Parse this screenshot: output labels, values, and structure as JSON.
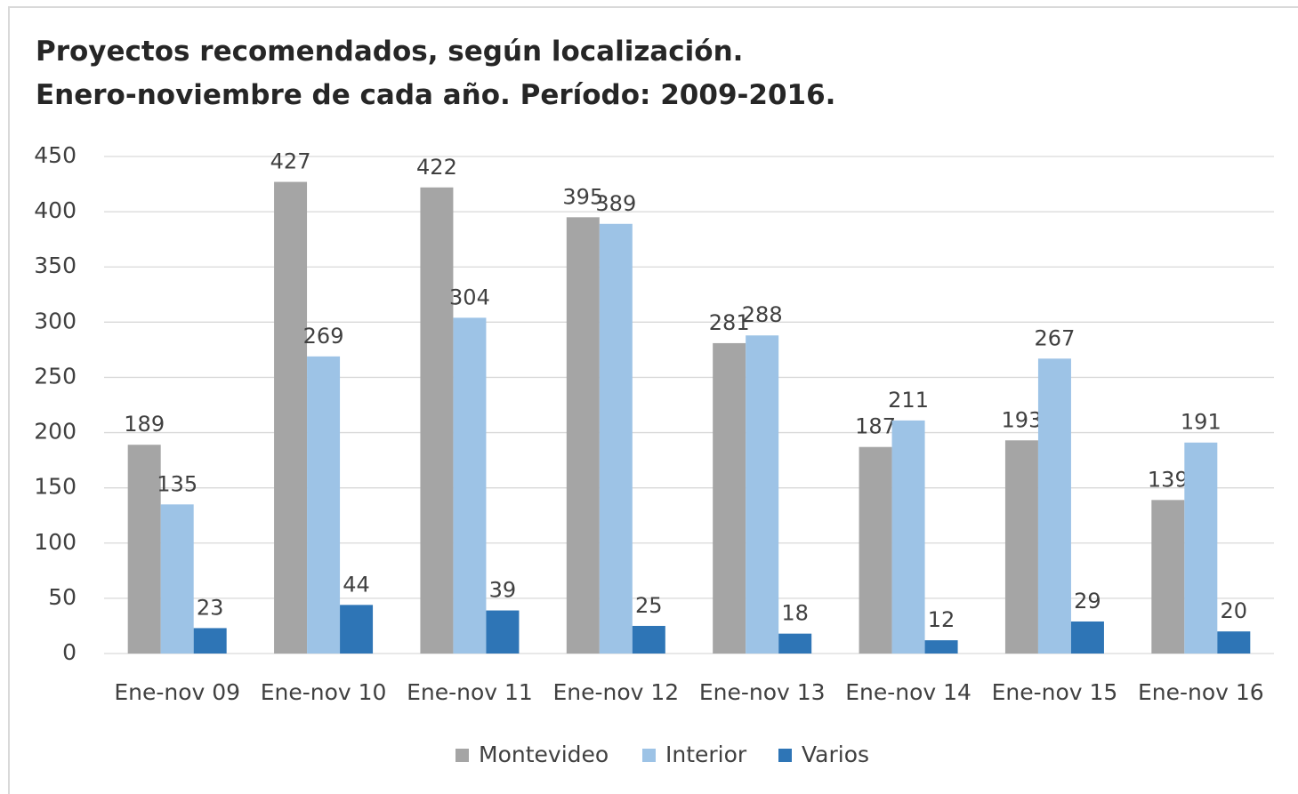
{
  "chart_data": {
    "type": "bar",
    "title": "Proyectos recomendados, según localización.",
    "subtitle": "Enero-noviembre de cada año. Período: 2009-2016.",
    "categories": [
      "Ene-nov 09",
      "Ene-nov 10",
      "Ene-nov 11",
      "Ene-nov 12",
      "Ene-nov 13",
      "Ene-nov 14",
      "Ene-nov 15",
      "Ene-nov 16"
    ],
    "series": [
      {
        "name": "Montevideo",
        "color": "#a5a5a5",
        "values": [
          189,
          427,
          422,
          395,
          281,
          187,
          193,
          139
        ]
      },
      {
        "name": "Interior",
        "color": "#9dc3e6",
        "values": [
          135,
          269,
          304,
          389,
          288,
          211,
          267,
          191
        ]
      },
      {
        "name": "Varios",
        "color": "#2e75b6",
        "values": [
          23,
          44,
          39,
          25,
          18,
          12,
          29,
          20
        ]
      }
    ],
    "ylim": [
      0,
      450
    ],
    "yticks": [
      0,
      50,
      100,
      150,
      200,
      250,
      300,
      350,
      400,
      450
    ],
    "grid": true,
    "legend": "bottom"
  }
}
